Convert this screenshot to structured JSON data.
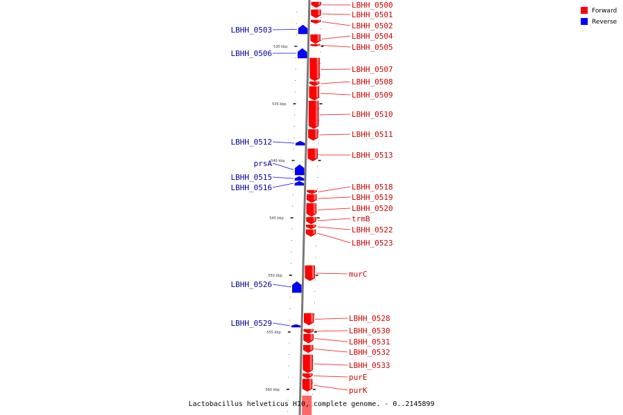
{
  "legend": [
    {
      "label": "Forward",
      "color": "#ff0000"
    },
    {
      "label": "Reverse",
      "color": "#0000ff"
    }
  ],
  "caption": "Lactobacillus helveticus H10, complete genome. - 0..2145899",
  "ticks": [
    {
      "label": "530 kbp",
      "pos_kbp": 530
    },
    {
      "label": "535 kbp",
      "pos_kbp": 535
    },
    {
      "label": "540 kbp",
      "pos_kbp": 540
    },
    {
      "label": "545 kbp",
      "pos_kbp": 545
    },
    {
      "label": "550 kbp",
      "pos_kbp": 550
    },
    {
      "label": "555 kbp",
      "pos_kbp": 555
    },
    {
      "label": "560 kbp",
      "pos_kbp": 560
    }
  ],
  "forward_genes": [
    {
      "label": "LBHH_0500"
    },
    {
      "label": "LBHH_0501"
    },
    {
      "label": "LBHH_0502"
    },
    {
      "label": "LBHH_0504"
    },
    {
      "label": "LBHH_0505"
    },
    {
      "label": "LBHH_0507"
    },
    {
      "label": "LBHH_0508"
    },
    {
      "label": "LBHH_0509"
    },
    {
      "label": "LBHH_0510"
    },
    {
      "label": "LBHH_0511"
    },
    {
      "label": "LBHH_0513"
    },
    {
      "label": "LBHH_0518"
    },
    {
      "label": "LBHH_0519"
    },
    {
      "label": "LBHH_0520"
    },
    {
      "label": "trmB"
    },
    {
      "label": "LBHH_0522"
    },
    {
      "label": "LBHH_0523"
    },
    {
      "label": "murC"
    },
    {
      "label": "LBHH_0528"
    },
    {
      "label": "LBHH_0530"
    },
    {
      "label": "LBHH_0531"
    },
    {
      "label": "LBHH_0532"
    },
    {
      "label": "LBHH_0533"
    },
    {
      "label": "purE"
    },
    {
      "label": "purK"
    }
  ],
  "reverse_genes": [
    {
      "label": "LBHH_0503"
    },
    {
      "label": "LBHH_0506"
    },
    {
      "label": "LBHH_0512"
    },
    {
      "label": "prsA"
    },
    {
      "label": "LBHH_0515"
    },
    {
      "label": "LBHH_0516"
    },
    {
      "label": "LBHH_0526"
    },
    {
      "label": "LBHH_0529"
    }
  ],
  "colors": {
    "forward": "#ff0000",
    "forward_label": "#cc0000",
    "reverse": "#0000ff",
    "reverse_label": "#000099",
    "backbone": "#777777"
  }
}
